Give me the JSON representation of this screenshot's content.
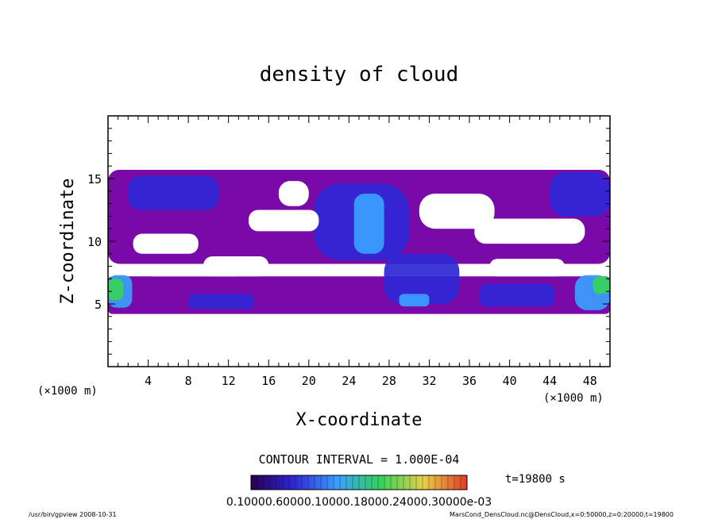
{
  "chart_data": {
    "type": "heatmap",
    "title": "density of cloud",
    "xlabel": "X-coordinate",
    "ylabel": "Z-coordinate",
    "x_unit_label_left": "(×1000 m)",
    "x_unit_label_right": "(×1000 m)",
    "xlim": [
      0,
      50
    ],
    "ylim": [
      0,
      20
    ],
    "x_ticks": [
      4,
      8,
      12,
      16,
      20,
      24,
      28,
      32,
      36,
      40,
      44,
      48
    ],
    "x_tick_labels": [
      "4",
      "8",
      "12",
      "16",
      "20",
      "24",
      "28",
      "32",
      "36",
      "40",
      "44",
      "48"
    ],
    "y_ticks": [
      5,
      10,
      15
    ],
    "y_tick_labels": [
      "5",
      "10",
      "15"
    ],
    "contour_interval_label": "CONTOUR INTERVAL = 1.000E-04",
    "time_label": "t=19800 s",
    "colorbar_labels_text": "0.10000.60000.10000.18000.24000.30000e-03",
    "colors": {
      "outer": "#7a0aa8",
      "inner": "#2f27d6",
      "core": "#3aa0ff",
      "peak": "#36d25a"
    },
    "regions": [
      {
        "level": 1,
        "x": [
          0.0,
          50.0
        ],
        "z": [
          8.2,
          15.7
        ]
      },
      {
        "level": 1,
        "x": [
          0.0,
          50.0
        ],
        "z": [
          4.2,
          7.2
        ]
      },
      {
        "level": 2,
        "x": [
          2.0,
          11.0
        ],
        "z": [
          12.5,
          15.2
        ]
      },
      {
        "level": 2,
        "x": [
          20.5,
          30.0
        ],
        "z": [
          8.5,
          14.6
        ]
      },
      {
        "level": 2,
        "x": [
          27.5,
          35.0
        ],
        "z": [
          5.0,
          9.0
        ]
      },
      {
        "level": 2,
        "x": [
          8.0,
          14.5
        ],
        "z": [
          4.6,
          5.8
        ]
      },
      {
        "level": 2,
        "x": [
          37.0,
          44.5
        ],
        "z": [
          4.8,
          6.6
        ]
      },
      {
        "level": 2,
        "x": [
          44.0,
          50.0
        ],
        "z": [
          12.0,
          15.5
        ]
      },
      {
        "level": 3,
        "x": [
          24.5,
          27.5
        ],
        "z": [
          9.0,
          13.8
        ]
      },
      {
        "level": 3,
        "x": [
          29.0,
          32.0
        ],
        "z": [
          4.8,
          5.8
        ]
      },
      {
        "level": 3,
        "x": [
          46.5,
          50.0
        ],
        "z": [
          4.5,
          7.3
        ]
      },
      {
        "level": 3,
        "x": [
          0.0,
          2.4
        ],
        "z": [
          4.7,
          7.3
        ]
      },
      {
        "level": 4,
        "x": [
          0.0,
          1.5
        ],
        "z": [
          5.3,
          7.0
        ]
      },
      {
        "level": 4,
        "x": [
          48.3,
          50.0
        ],
        "z": [
          5.8,
          7.2
        ]
      }
    ],
    "gaps": [
      {
        "x": [
          14.0,
          21.0
        ],
        "z": [
          10.8,
          12.5
        ]
      },
      {
        "x": [
          2.5,
          9.0
        ],
        "z": [
          9.0,
          10.6
        ]
      },
      {
        "x": [
          9.5,
          16.0
        ],
        "z": [
          7.2,
          8.8
        ]
      },
      {
        "x": [
          17.0,
          20.0
        ],
        "z": [
          12.8,
          14.8
        ]
      },
      {
        "x": [
          31.0,
          38.5
        ],
        "z": [
          11.0,
          13.8
        ]
      },
      {
        "x": [
          36.5,
          47.5
        ],
        "z": [
          9.8,
          11.8
        ]
      },
      {
        "x": [
          38.0,
          45.5
        ],
        "z": [
          7.2,
          8.6
        ]
      },
      {
        "x": [
          4.0,
          13.0
        ],
        "z": [
          7.2,
          8.0
        ]
      }
    ]
  },
  "footer": {
    "left": "/usr/bin/gpview   2008-10-31",
    "right": "MarsCond_DensCloud.nc@DensCloud,x=0:50000,z=0:20000,t=19800"
  }
}
